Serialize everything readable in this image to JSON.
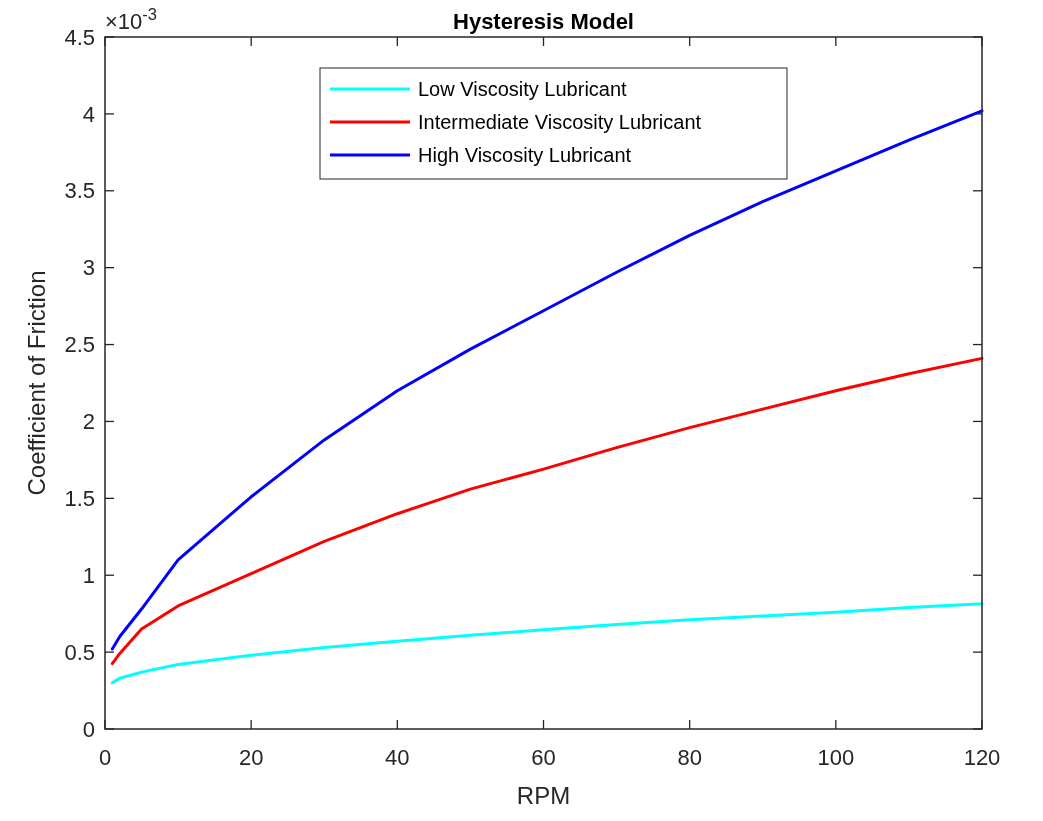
{
  "chart_data": {
    "type": "line",
    "title": "Hysteresis Model",
    "xlabel": "RPM",
    "ylabel": "Coefficient of Friction",
    "annotations": [
      "×10$^{-3}$"
    ],
    "x": [
      1,
      2,
      5,
      10,
      20,
      30,
      40,
      50,
      60,
      70,
      80,
      90,
      100,
      110,
      120
    ],
    "series": [
      {
        "name": "Low Viscosity Lubricant",
        "color": "#00ffff",
        "values": [
          0.3,
          0.33,
          0.37,
          0.42,
          0.48,
          0.53,
          0.57,
          0.61,
          0.645,
          0.68,
          0.71,
          0.735,
          0.76,
          0.79,
          0.815
        ]
      },
      {
        "name": "Intermediate Viscosity Lubricant",
        "color": "#ff0000",
        "values": [
          0.425,
          0.49,
          0.65,
          0.8,
          1.01,
          1.22,
          1.4,
          1.56,
          1.69,
          1.83,
          1.96,
          2.08,
          2.2,
          2.31,
          2.41
        ]
      },
      {
        "name": "High Viscosity Lubricant",
        "color": "#0000ff",
        "values": [
          0.52,
          0.6,
          0.78,
          1.1,
          1.51,
          1.88,
          2.2,
          2.47,
          2.72,
          2.97,
          3.21,
          3.43,
          3.63,
          3.83,
          4.02
        ]
      }
    ],
    "xlim": [
      0,
      120
    ],
    "xticks": [
      0,
      20,
      40,
      60,
      80,
      100,
      120
    ],
    "ylim": [
      0,
      4.5
    ],
    "yticks": [
      0,
      0.5,
      1,
      1.5,
      2,
      2.5,
      3,
      3.5,
      4,
      4.5
    ],
    "grid": false,
    "legend": "top",
    "line_style": "solid",
    "marker": "none"
  }
}
